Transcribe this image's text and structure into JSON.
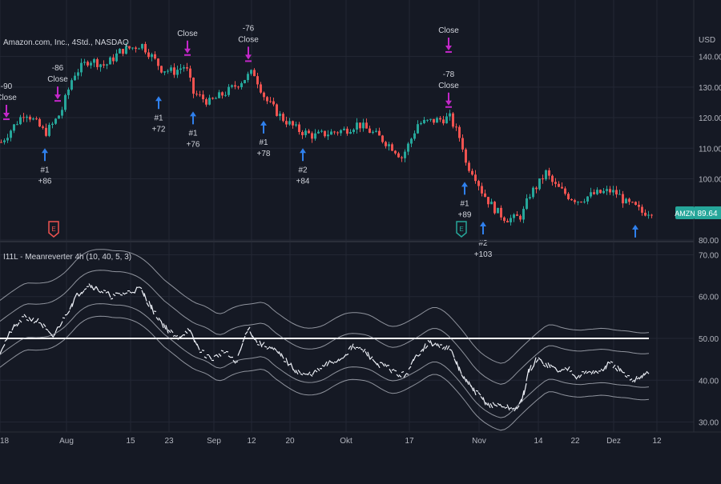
{
  "theme": {
    "background": "#151924",
    "grid": "#232734",
    "axis_text": "#b2b5be",
    "up": "#26a69a",
    "down": "#ef5350",
    "long_signal": "#2f80ed",
    "close_signal": "#c327c9",
    "ticker_badge": "#26a69a",
    "ref_line": "#ffffff",
    "band": "#b8bcc6",
    "osc_up": "#f0f3fa",
    "osc_green": "#4caf50",
    "osc_red": "#ef5350"
  },
  "header": {
    "symbol_info": "Amazon.com, Inc., 4Std., NASDAQ",
    "indicator_label": "I11L - Meanreverter 4h (10, 40, 5, 3)"
  },
  "price_axis": {
    "currency": "USD",
    "ticks": [
      "140.00",
      "130.00",
      "120.00",
      "110.00",
      "100.00",
      "80.00"
    ],
    "tick_values": [
      140,
      130,
      120,
      110,
      100,
      80
    ],
    "last_price": "89.64",
    "ticker": "AMZN"
  },
  "osc_axis": {
    "ticks": [
      "70.00",
      "60.00",
      "50.00",
      "40.00",
      "30.00"
    ],
    "tick_values": [
      70,
      60,
      50,
      40,
      30
    ],
    "ref_level": 50
  },
  "time_axis": {
    "labels": [
      "18",
      "Aug",
      "15",
      "23",
      "Sep",
      "12",
      "20",
      "Okt",
      "17",
      "Nov",
      "14",
      "22",
      "Dez",
      "12"
    ],
    "positions": [
      0,
      83,
      163,
      211,
      267,
      314,
      362,
      432,
      511,
      598,
      672,
      718,
      766,
      820
    ]
  },
  "chart_data": [
    {
      "type": "candlestick",
      "ylabel": "USD",
      "ylim": [
        80,
        148
      ],
      "price_path": {
        "x": [
          0,
          30,
          55,
          65,
          75,
          90,
          110,
          130,
          150,
          165,
          175,
          185,
          200,
          215,
          230,
          240,
          260,
          285,
          300,
          315,
          330,
          350,
          370,
          390,
          410,
          430,
          445,
          470,
          490,
          500,
          510,
          520,
          540,
          560,
          575,
          580,
          590,
          600,
          610,
          620,
          630,
          640,
          650,
          660,
          670,
          680,
          690,
          700,
          710,
          720,
          740,
          760,
          770,
          780,
          790,
          800,
          815
        ],
        "y": [
          112,
          122,
          115,
          118,
          122,
          134,
          139,
          137,
          142,
          143,
          144,
          141,
          136,
          135,
          137,
          128,
          125,
          129,
          132,
          135,
          126,
          120,
          116,
          114,
          115,
          116,
          118,
          114,
          110,
          107,
          112,
          118,
          119,
          120,
          112,
          105,
          102,
          96,
          92,
          89,
          87,
          87,
          88,
          95,
          98,
          102,
          98,
          96,
          94,
          93,
          95,
          96,
          95,
          92,
          91,
          89,
          89.64
        ]
      },
      "annotations": [
        {
          "id": "close-90",
          "kind": "close",
          "x": 8,
          "price": 120,
          "text": [
            "-90",
            "Close"
          ]
        },
        {
          "id": "long-86",
          "kind": "long",
          "x": 56,
          "price": 110,
          "text": [
            "#1",
            "+86"
          ]
        },
        {
          "id": "close-86",
          "kind": "close",
          "x": 72,
          "price": 126,
          "text": [
            "-86",
            "Close"
          ]
        },
        {
          "id": "long-72",
          "kind": "long",
          "x": 198,
          "price": 127,
          "text": [
            "#1",
            "+72"
          ]
        },
        {
          "id": "close-a",
          "kind": "close",
          "x": 234,
          "price": 141,
          "text": [
            "Close"
          ]
        },
        {
          "id": "long-76",
          "kind": "long",
          "x": 241,
          "price": 122,
          "text": [
            "#1",
            "+76"
          ]
        },
        {
          "id": "close-76",
          "kind": "close",
          "x": 310,
          "price": 139,
          "text": [
            "-76",
            "Close"
          ]
        },
        {
          "id": "long-78",
          "kind": "long",
          "x": 329,
          "price": 119,
          "text": [
            "#1",
            "+78"
          ]
        },
        {
          "id": "long-84",
          "kind": "long",
          "x": 378,
          "price": 110,
          "text": [
            "#2",
            "+84"
          ]
        },
        {
          "id": "close-b",
          "kind": "close",
          "x": 560,
          "price": 142,
          "text": [
            "Close"
          ]
        },
        {
          "id": "close-78",
          "kind": "close",
          "x": 560,
          "price": 124,
          "text": [
            "-78",
            "Close"
          ]
        },
        {
          "id": "long-89",
          "kind": "long",
          "x": 580,
          "price": 99,
          "text": [
            "#1",
            "+89"
          ]
        },
        {
          "id": "long-103",
          "kind": "long",
          "x": 603,
          "price": 86,
          "text": [
            "#2",
            "+103"
          ]
        },
        {
          "id": "long-last",
          "kind": "long",
          "x": 793,
          "price": 85,
          "text": []
        }
      ],
      "earnings_markers": [
        {
          "x": 67,
          "label": "E",
          "color": "#ef5350"
        },
        {
          "x": 576,
          "label": "E",
          "color": "#26a69a"
        }
      ]
    },
    {
      "type": "line",
      "ylim": [
        28,
        72
      ],
      "reference_line": 50,
      "osc_path": {
        "x": [
          0,
          15,
          30,
          50,
          65,
          80,
          95,
          110,
          120,
          140,
          160,
          175,
          190,
          205,
          220,
          235,
          250,
          265,
          280,
          295,
          310,
          320,
          335,
          350,
          365,
          380,
          395,
          410,
          425,
          440,
          455,
          470,
          485,
          500,
          510,
          520,
          535,
          550,
          560,
          570,
          580,
          590,
          600,
          610,
          625,
          640,
          650,
          660,
          670,
          680,
          690,
          700,
          710,
          720,
          735,
          750,
          760,
          770,
          780,
          790,
          800,
          810
        ],
        "y": [
          47,
          52,
          55,
          54,
          50,
          55,
          60,
          63,
          62,
          60,
          61,
          62,
          57,
          53,
          50,
          52,
          47,
          45,
          47,
          44,
          53,
          49,
          48,
          46,
          43,
          41,
          42,
          44,
          45,
          48,
          47,
          44,
          43,
          41,
          42,
          46,
          49,
          48,
          48,
          44,
          40,
          38,
          36,
          34,
          34,
          33,
          34,
          42,
          45,
          44,
          43,
          42,
          43,
          41,
          42,
          42,
          44,
          43,
          41,
          40,
          41,
          42
        ]
      },
      "band_upper": 10,
      "band_lower": 6
    }
  ]
}
